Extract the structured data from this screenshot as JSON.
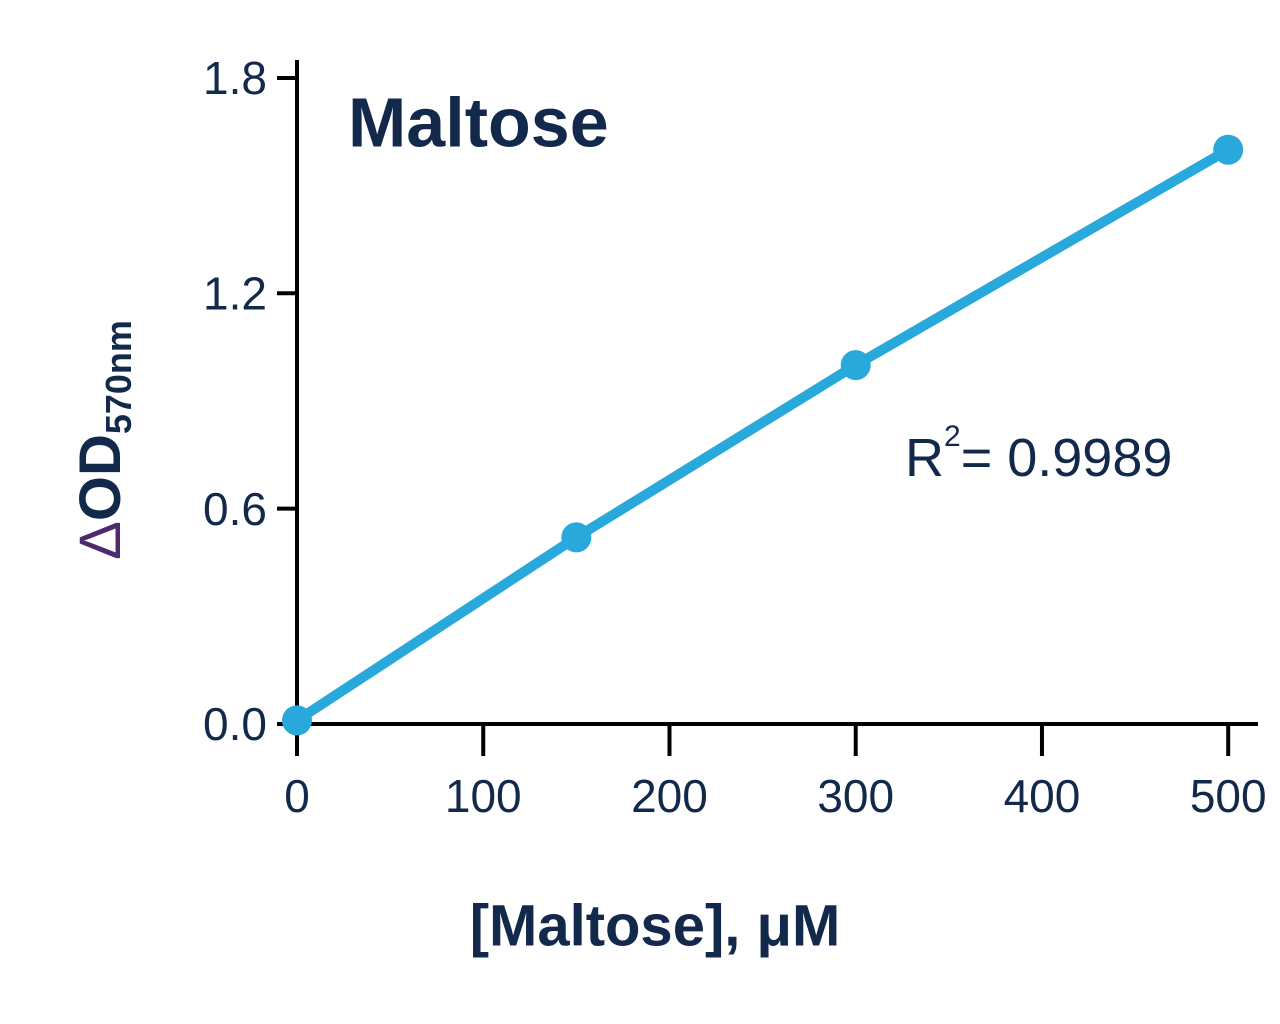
{
  "chart_data": {
    "type": "line",
    "title": "Maltose",
    "annotation": {
      "base": "R",
      "sup": "2",
      "rest": "= 0.9989"
    },
    "xlabel": "[Maltose], μM",
    "ylabel": {
      "symbol": "Δ",
      "main": "OD",
      "sub": "570nm"
    },
    "x": [
      0,
      150,
      300,
      500
    ],
    "series": [
      {
        "color": "#29a8dc",
        "values": [
          0.01,
          0.52,
          1.0,
          1.6
        ]
      }
    ],
    "xlim": [
      0,
      516
    ],
    "xticks": [
      0,
      100,
      200,
      300,
      400,
      500
    ],
    "ylim": [
      0,
      1.85
    ],
    "yticks": [
      {
        "value": 0,
        "label": "0.0"
      },
      0.6,
      1.2,
      1.8
    ],
    "grid": false
  }
}
